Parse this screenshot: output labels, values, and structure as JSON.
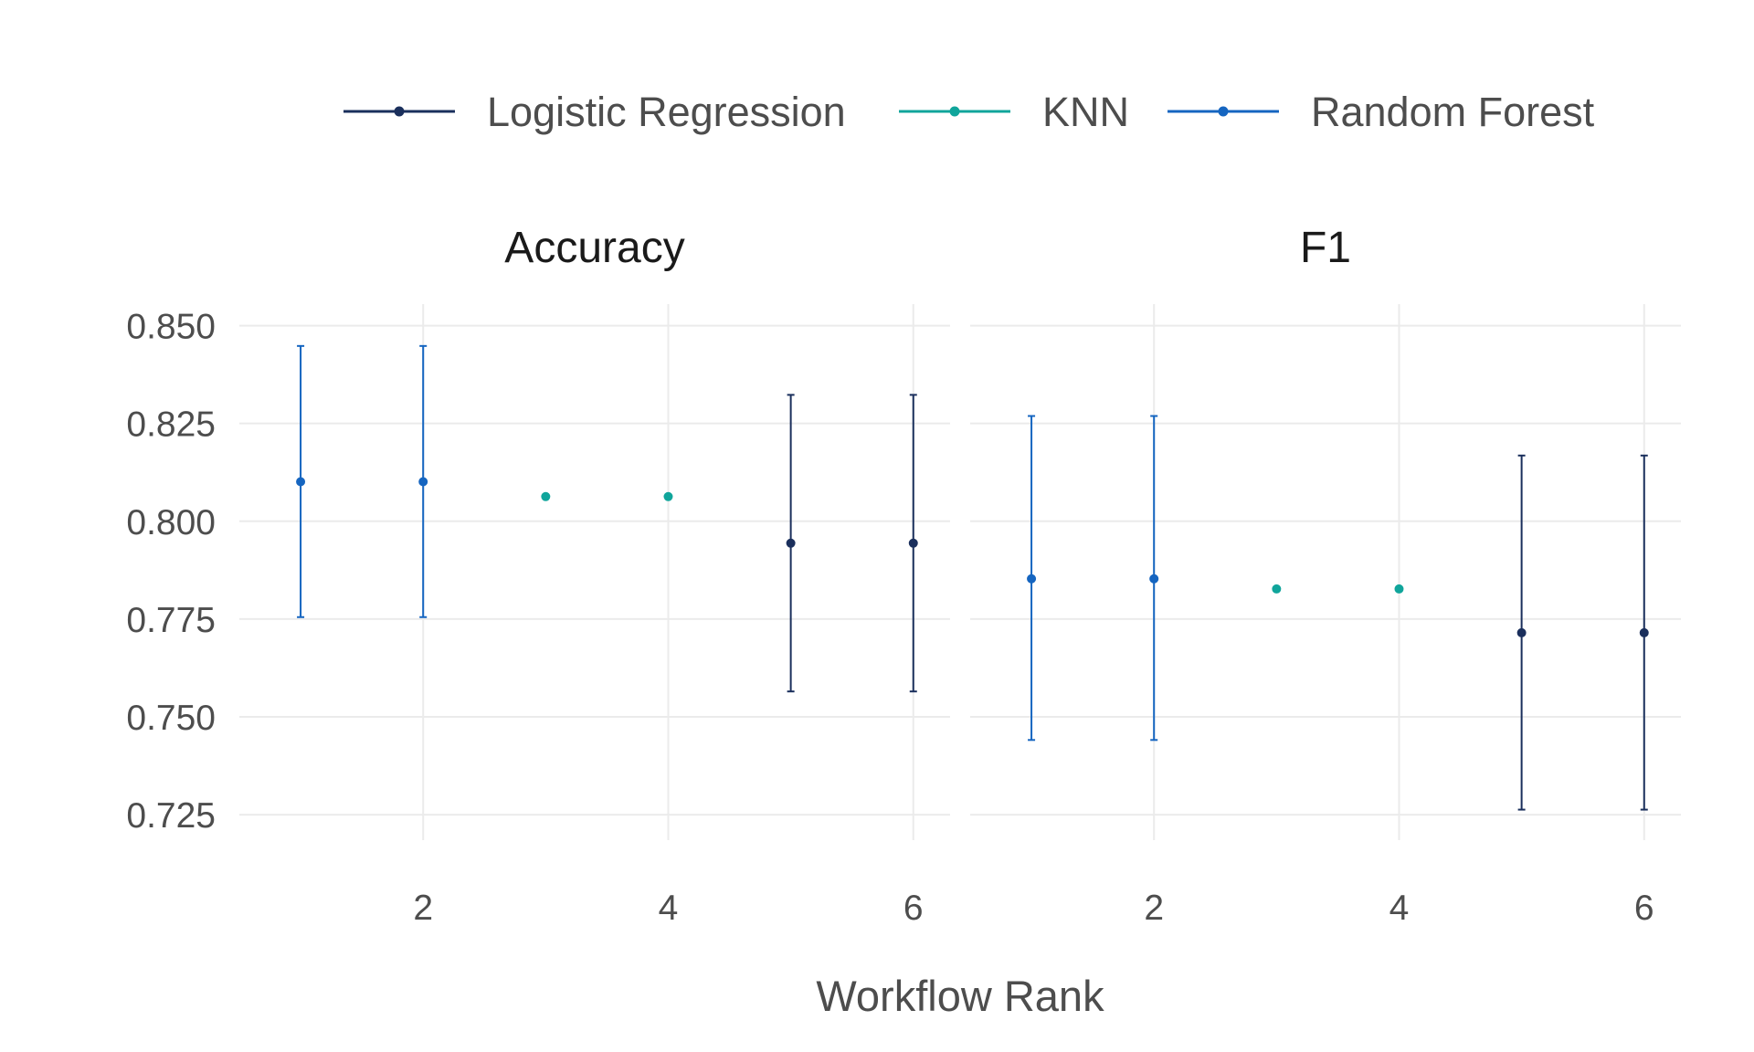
{
  "chart_data": {
    "type": "scatter",
    "facets": [
      "Accuracy",
      "F1"
    ],
    "xlabel": "Workflow Rank",
    "ylabel": "",
    "x_ticks": [
      2,
      4,
      6
    ],
    "xlim": [
      0.5,
      6.3
    ],
    "y_ticks": [
      "0.725",
      "0.750",
      "0.775",
      "0.800",
      "0.825",
      "0.850"
    ],
    "ylim": [
      0.7185,
      0.8555
    ],
    "legend_position": "top",
    "grid": true,
    "series": [
      {
        "name": "Logistic Regression",
        "color": "#1a2f5c",
        "points": {
          "Accuracy": [
            {
              "x": 5,
              "y": 0.7944,
              "lower": 0.7565,
              "upper": 0.8323
            },
            {
              "x": 6,
              "y": 0.7944,
              "lower": 0.7565,
              "upper": 0.8323
            }
          ],
          "F1": [
            {
              "x": 5,
              "y": 0.7715,
              "lower": 0.7263,
              "upper": 0.8168
            },
            {
              "x": 6,
              "y": 0.7715,
              "lower": 0.7263,
              "upper": 0.8168
            }
          ]
        }
      },
      {
        "name": "KNN",
        "color": "#10a59b",
        "points": {
          "Accuracy": [
            {
              "x": 3,
              "y": 0.8063
            },
            {
              "x": 4,
              "y": 0.8063
            }
          ],
          "F1": [
            {
              "x": 3,
              "y": 0.7827
            },
            {
              "x": 4,
              "y": 0.7827
            }
          ]
        }
      },
      {
        "name": "Random Forest",
        "color": "#1565c0",
        "points": {
          "Accuracy": [
            {
              "x": 1,
              "y": 0.8101,
              "lower": 0.7755,
              "upper": 0.8448
            },
            {
              "x": 2,
              "y": 0.8101,
              "lower": 0.7755,
              "upper": 0.8448
            }
          ],
          "F1": [
            {
              "x": 1,
              "y": 0.7853,
              "lower": 0.7441,
              "upper": 0.8269
            },
            {
              "x": 2,
              "y": 0.7853,
              "lower": 0.7441,
              "upper": 0.8269
            }
          ]
        }
      }
    ]
  }
}
